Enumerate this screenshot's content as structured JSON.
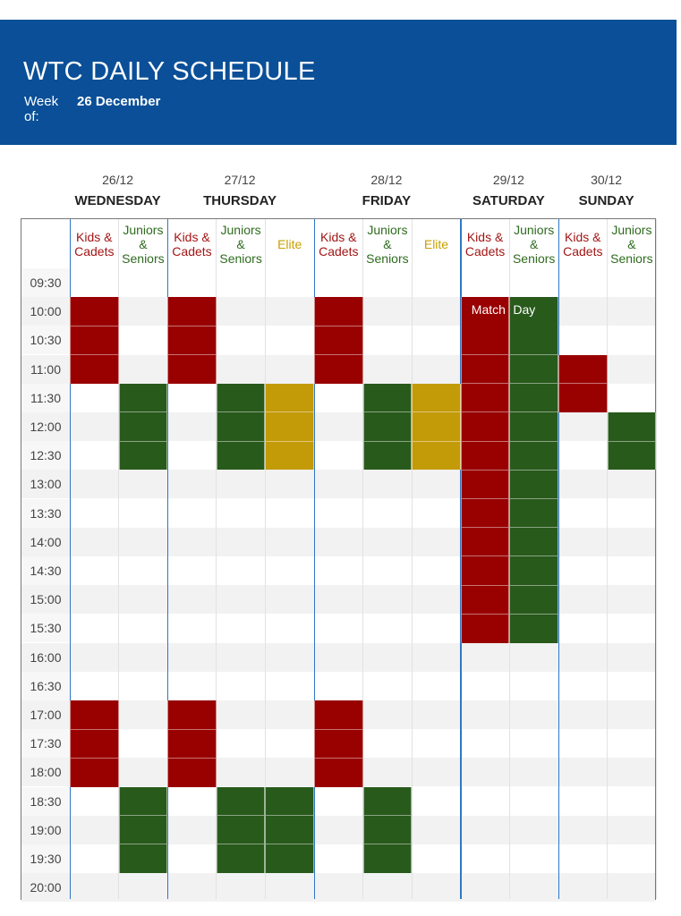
{
  "header": {
    "title": "WTC DAILY SCHEDULE",
    "week_label": "Week of:",
    "week_value": "26 December",
    "background": "#0a4f97"
  },
  "colors": {
    "kids": "#990000",
    "juniors": "#285a1c",
    "elite": "#c39a08",
    "kids_text": "#a31515",
    "juniors_text": "#2f6b1f",
    "elite_text": "#c8a000",
    "day_divider": "#2f78c4"
  },
  "days": [
    {
      "date": "26/12",
      "name": "WEDNESDAY",
      "groups": [
        "Kids & Cadets",
        "Juniors & Seniors"
      ]
    },
    {
      "date": "27/12",
      "name": "THURSDAY",
      "groups": [
        "Kids & Cadets",
        "Juniors & Seniors",
        "Elite"
      ]
    },
    {
      "date": "28/12",
      "name": "FRIDAY",
      "groups": [
        "Kids & Cadets",
        "Juniors & Seniors",
        "Elite"
      ]
    },
    {
      "date": "29/12",
      "name": "SATURDAY",
      "groups": [
        "Kids & Cadets",
        "Juniors & Seniors"
      ]
    },
    {
      "date": "30/12",
      "name": "SUNDAY",
      "groups": [
        "Kids & Cadets",
        "Juniors & Seniors"
      ]
    }
  ],
  "times": [
    "09:30",
    "10:00",
    "10:30",
    "11:00",
    "11:30",
    "12:00",
    "12:30",
    "13:00",
    "13:30",
    "14:00",
    "14:30",
    "15:00",
    "15:30",
    "16:00",
    "16:30",
    "17:00",
    "17:30",
    "18:00",
    "18:30",
    "19:00",
    "19:30",
    "20:00"
  ],
  "sessions": [
    {
      "day": "WEDNESDAY",
      "group": "Kids & Cadets",
      "start": "10:00",
      "end": "11:30"
    },
    {
      "day": "WEDNESDAY",
      "group": "Juniors & Seniors",
      "start": "11:30",
      "end": "13:00"
    },
    {
      "day": "WEDNESDAY",
      "group": "Kids & Cadets",
      "start": "17:00",
      "end": "18:30"
    },
    {
      "day": "WEDNESDAY",
      "group": "Juniors & Seniors",
      "start": "18:30",
      "end": "20:00"
    },
    {
      "day": "THURSDAY",
      "group": "Kids & Cadets",
      "start": "10:00",
      "end": "11:30"
    },
    {
      "day": "THURSDAY",
      "group": "Juniors & Seniors",
      "start": "11:30",
      "end": "13:00"
    },
    {
      "day": "THURSDAY",
      "group": "Elite",
      "start": "11:30",
      "end": "13:00"
    },
    {
      "day": "THURSDAY",
      "group": "Kids & Cadets",
      "start": "17:00",
      "end": "18:30"
    },
    {
      "day": "THURSDAY",
      "group": "Juniors & Seniors",
      "start": "18:30",
      "end": "20:00"
    },
    {
      "day": "THURSDAY",
      "group": "Elite",
      "start": "18:30",
      "end": "20:00",
      "color": "juniors"
    },
    {
      "day": "FRIDAY",
      "group": "Kids & Cadets",
      "start": "10:00",
      "end": "11:30"
    },
    {
      "day": "FRIDAY",
      "group": "Juniors & Seniors",
      "start": "11:30",
      "end": "13:00"
    },
    {
      "day": "FRIDAY",
      "group": "Elite",
      "start": "11:30",
      "end": "13:00"
    },
    {
      "day": "FRIDAY",
      "group": "Kids & Cadets",
      "start": "17:00",
      "end": "18:30"
    },
    {
      "day": "FRIDAY",
      "group": "Juniors & Seniors",
      "start": "18:30",
      "end": "20:00"
    },
    {
      "day": "SATURDAY",
      "group": "Kids & Cadets",
      "start": "10:30",
      "end": "16:00"
    },
    {
      "day": "SATURDAY",
      "group": "Juniors & Seniors",
      "start": "10:30",
      "end": "16:00"
    },
    {
      "day": "SUNDAY",
      "group": "Kids & Cadets",
      "start": "11:00",
      "end": "12:00"
    },
    {
      "day": "SUNDAY",
      "group": "Juniors & Seniors",
      "start": "12:00",
      "end": "13:00"
    }
  ],
  "match_day": {
    "day": "SATURDAY",
    "time": "10:00",
    "label_left": "Match",
    "label_right": "Day"
  }
}
